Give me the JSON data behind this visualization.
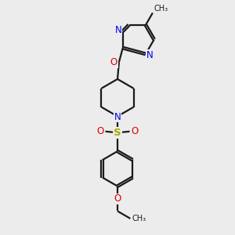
{
  "bg_color": "#ececec",
  "bond_color": "#1a1a1a",
  "N_color": "#0000ee",
  "O_color": "#dd0000",
  "S_color": "#aaaa00",
  "line_width": 1.6,
  "figsize": [
    3.0,
    3.0
  ],
  "dpi": 100,
  "xlim": [
    0,
    10
  ],
  "ylim": [
    0,
    10
  ]
}
